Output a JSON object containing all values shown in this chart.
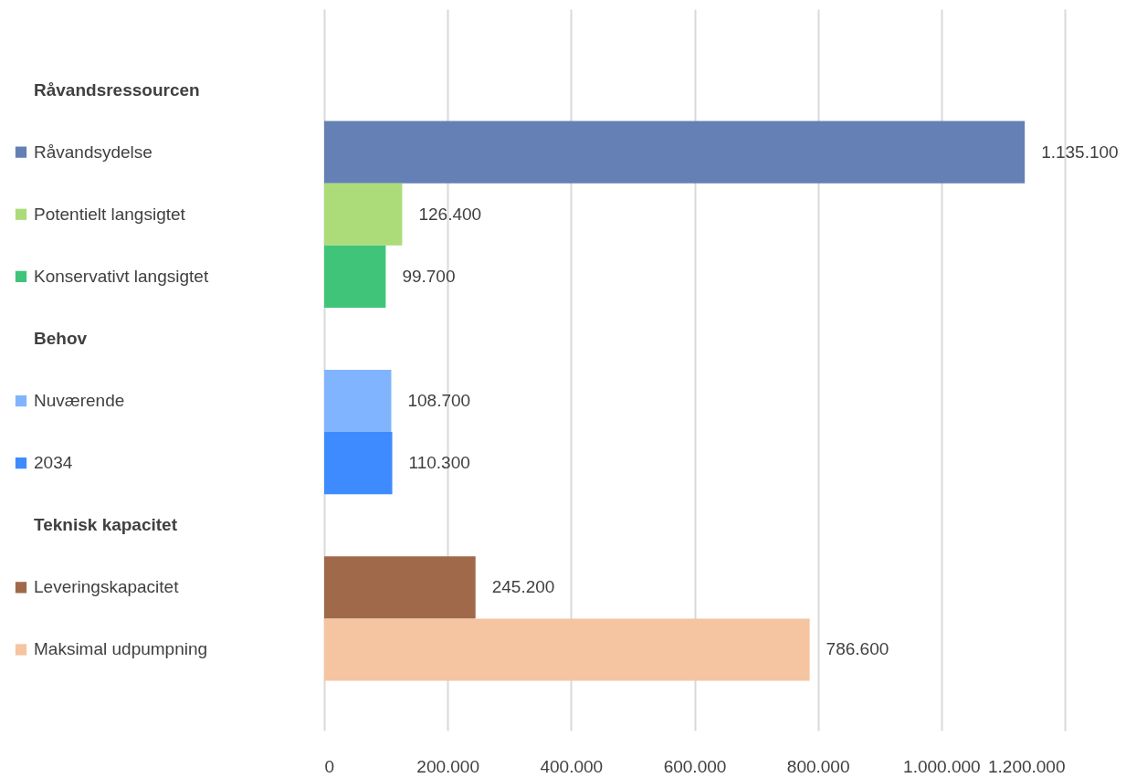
{
  "chart_data": {
    "type": "bar",
    "orientation": "horizontal",
    "categories": [
      "Råvandsressourcen",
      "Råvandsydelse",
      "Potentielt langsigtet",
      "Konservativt langsigtet",
      "Behov",
      "Nuværende",
      "2034",
      "Teknisk kapacitet",
      "Leveringskapacitet",
      "Maksimal udpumpning"
    ],
    "values": [
      null,
      1135100,
      126400,
      99700,
      null,
      108700,
      110300,
      null,
      245200,
      786600
    ],
    "colors": [
      null,
      "#6480b4",
      "#acdc7a",
      "#40c47a",
      null,
      "#80b4ff",
      "#3d8bff",
      null,
      "#a0694a",
      "#f5c4a0"
    ],
    "value_labels": [
      null,
      "1.135.100",
      "126.400",
      "99.700",
      null,
      "108.700",
      "110.300",
      null,
      "245.200",
      "786.600"
    ],
    "xlim": [
      0,
      1200000
    ],
    "xticks": [
      0,
      {
        "value": 200000,
        "label": "200.000"
      },
      {
        "value": 400000,
        "label": "400.000"
      },
      {
        "value": 600000,
        "label": "600.000"
      },
      {
        "value": 800000,
        "label": "800.000"
      },
      {
        "value": 1000000,
        "label": "1.000.000"
      },
      {
        "value": 1200000,
        "label": "1.200.000"
      }
    ],
    "grid": "x"
  }
}
